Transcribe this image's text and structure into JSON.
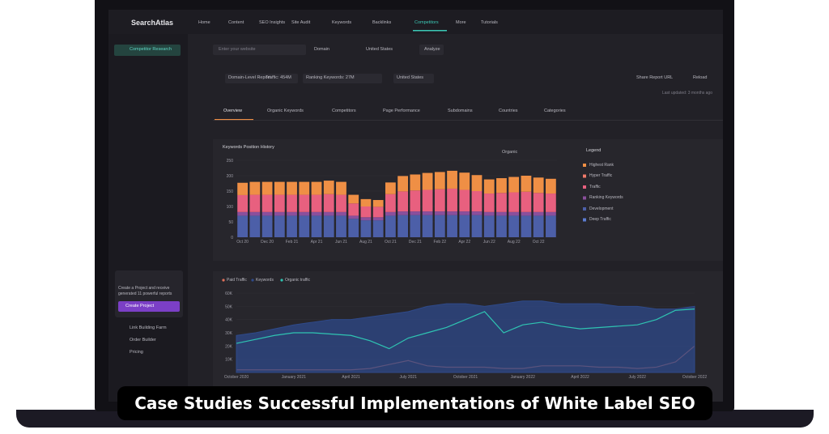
{
  "nav": {
    "logo": "SearchAtlas",
    "items": [
      "Home",
      "Content",
      "SEO Insights",
      "Site Audit",
      "Keywords",
      "Backlinks",
      "Competitors",
      "More",
      "Tutorials"
    ]
  },
  "sidebar": {
    "active": "Competitor Research",
    "promo": "Create a Project and receive generated 11 powerful reports",
    "promo_button": "Create Project",
    "links": [
      "Link Building Farm",
      "Order Builder",
      "Pricing"
    ]
  },
  "search": {
    "placeholder": "Enter your website",
    "mode": "Domain",
    "country": "United States",
    "button": "Analyze"
  },
  "report": {
    "level": "Domain-Level Report",
    "traffic": "Traffic: 454M",
    "keywords": "Ranking Keywords: 27M",
    "country": "United States",
    "share": "Share Report URL",
    "reload": "Reload",
    "updated": "Last updated: 3 months ago"
  },
  "tabs": [
    "Overview",
    "Organic Keywords",
    "Competitors",
    "Page Performance",
    "Subdomains",
    "Countries",
    "Categories"
  ],
  "bar_chart": {
    "type": "bar",
    "title": "Keywords Position History",
    "dropdown": "Organic",
    "categories": [
      "Oct 20",
      null,
      "Dec 20",
      null,
      "Feb 21",
      null,
      "Apr 21",
      null,
      "Jun 21",
      null,
      "Aug 21",
      null,
      "Oct 21",
      null,
      "Dec 21",
      null,
      "Feb 22",
      null,
      "Apr 22",
      null,
      "Jun 22",
      null,
      "Aug 22",
      null,
      "Oct 22",
      null
    ],
    "series": [
      {
        "color": "#4c5fa8",
        "values": [
          70,
          70,
          70,
          70,
          70,
          70,
          70,
          70,
          70,
          60,
          55,
          55,
          70,
          72,
          72,
          72,
          72,
          72,
          72,
          72,
          70,
          70,
          70,
          70,
          70,
          70
        ]
      },
      {
        "color": "#8a4f9c",
        "values": [
          12,
          12,
          12,
          12,
          12,
          12,
          12,
          12,
          12,
          10,
          10,
          10,
          12,
          12,
          12,
          12,
          12,
          12,
          12,
          12,
          12,
          12,
          12,
          12,
          12,
          12
        ]
      },
      {
        "color": "#e8607f",
        "values": [
          55,
          56,
          56,
          56,
          56,
          56,
          56,
          58,
          56,
          40,
          35,
          34,
          58,
          65,
          68,
          70,
          72,
          74,
          70,
          66,
          60,
          62,
          64,
          66,
          62,
          60
        ]
      },
      {
        "color": "#ef8f45",
        "values": [
          40,
          42,
          42,
          42,
          42,
          42,
          42,
          44,
          42,
          28,
          24,
          22,
          38,
          50,
          52,
          55,
          56,
          58,
          56,
          52,
          46,
          48,
          50,
          52,
          50,
          48
        ]
      }
    ],
    "ylim": [
      0,
      250
    ],
    "yticks": [
      0,
      50,
      100,
      150,
      200,
      250
    ]
  },
  "legend": {
    "title": "Legend",
    "items": [
      {
        "name": "Highest Rank",
        "color": "#ef8f45"
      },
      {
        "name": "Hyper Traffic",
        "color": "#f07a6a"
      },
      {
        "name": "Traffic",
        "color": "#e8607f"
      },
      {
        "name": "Ranking Keywords",
        "color": "#8a4f9c"
      },
      {
        "name": "Development",
        "color": "#4c5fa8"
      },
      {
        "name": "Deep Traffic",
        "color": "#5b7bd0"
      }
    ]
  },
  "line_chart": {
    "type": "line",
    "categories": [
      "October 2020",
      null,
      null,
      "January 2021",
      null,
      null,
      "April 2021",
      null,
      null,
      "July 2021",
      null,
      null,
      "October 2021",
      null,
      null,
      "January 2022",
      null,
      null,
      "April 2022",
      null,
      null,
      "July 2022",
      null,
      null,
      "October 2022"
    ],
    "series": [
      {
        "name": "Paid Traffic",
        "color": "#e0705a",
        "values": [
          2,
          2,
          2,
          2,
          2,
          2,
          2,
          3,
          6,
          9,
          5,
          4,
          4,
          4,
          3,
          3,
          5,
          5,
          5,
          4,
          4,
          3,
          4,
          8,
          20
        ]
      },
      {
        "name": "Keywords",
        "color": "#2f4a8a",
        "values": [
          28,
          30,
          33,
          36,
          38,
          40,
          40,
          42,
          44,
          46,
          50,
          52,
          52,
          50,
          52,
          54,
          54,
          52,
          52,
          52,
          50,
          50,
          48,
          48,
          50
        ]
      },
      {
        "name": "Organic traffic",
        "color": "#2fc4b2",
        "values": [
          22,
          25,
          28,
          30,
          30,
          29,
          28,
          24,
          18,
          26,
          30,
          34,
          40,
          46,
          30,
          36,
          38,
          35,
          33,
          34,
          35,
          36,
          40,
          47,
          48
        ]
      }
    ],
    "ylim": [
      0,
      60
    ],
    "yticks": [
      {
        "value": 10,
        "label": "10K"
      },
      {
        "value": 20,
        "label": "20K"
      },
      {
        "value": 30,
        "label": "30K"
      },
      {
        "value": 40,
        "label": "40K"
      },
      {
        "value": 50,
        "label": "50K"
      },
      {
        "value": 60,
        "label": "60K"
      }
    ]
  },
  "caption": "Case Studies Successful Implementations of White Label SEO"
}
